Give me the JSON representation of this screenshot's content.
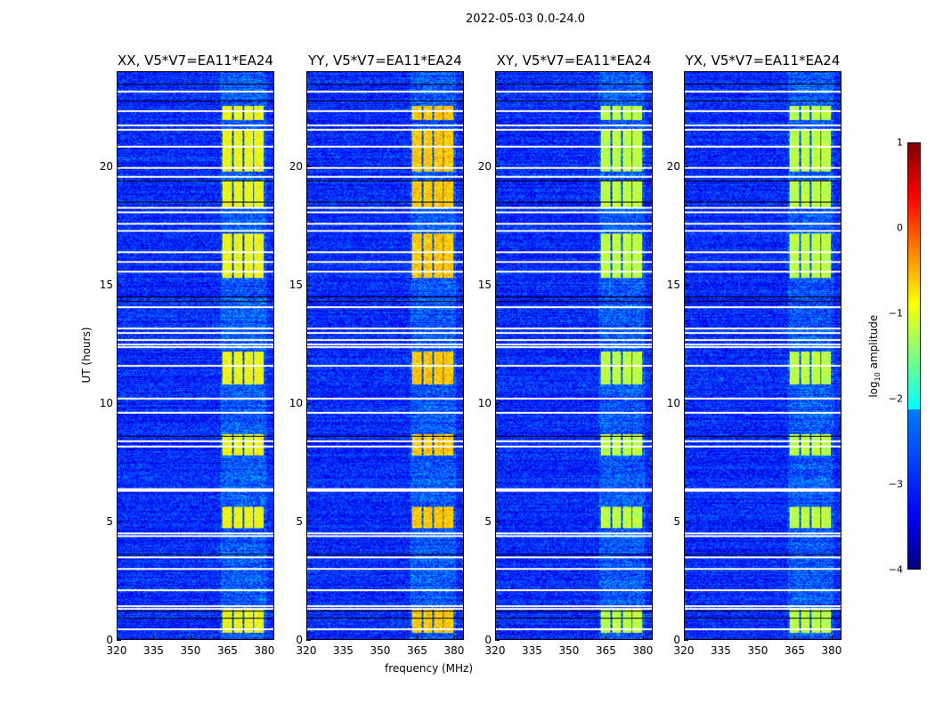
{
  "chart_data": {
    "type": "heatmap",
    "title": "2022-05-03 0.0-24.0",
    "xlabel": "frequency (MHz)",
    "ylabel": "UT (hours)",
    "xlim": [
      320,
      384
    ],
    "ylim": [
      0,
      24
    ],
    "xticks": [
      320,
      335,
      350,
      365,
      380
    ],
    "yticks": [
      0,
      5,
      10,
      15,
      20
    ],
    "colorbar": {
      "label": "log10 amplitude",
      "label_main": "log",
      "label_sub": "10",
      "label_rest": " amplitude",
      "range": [
        -4,
        1
      ],
      "ticks": [
        -4,
        -3,
        -2,
        -1,
        0,
        1
      ],
      "colormap": "jet"
    },
    "background_level": -3.2,
    "panels": [
      {
        "title": "XX, V5*V7=EA11*EA24",
        "peak_level": -0.9
      },
      {
        "title": "YY, V5*V7=EA11*EA24",
        "peak_level": -0.6
      },
      {
        "title": "XY, V5*V7=EA11*EA24",
        "peak_level": -1.2
      },
      {
        "title": "YX, V5*V7=EA11*EA24",
        "peak_level": -1.2
      }
    ],
    "signal_channels_mhz": [
      [
        363,
        367
      ],
      [
        367.5,
        371
      ],
      [
        372,
        375.5
      ],
      [
        376,
        380
      ]
    ],
    "signal_time_ranges_hours": [
      [
        0.3,
        1.3
      ],
      [
        4.7,
        5.6
      ],
      [
        7.8,
        8.7
      ],
      [
        10.8,
        12.2
      ],
      [
        15.3,
        17.2
      ],
      [
        18.3,
        19.4
      ],
      [
        19.8,
        21.6
      ],
      [
        22.0,
        22.6
      ]
    ],
    "flagged_hours": [
      0.45,
      1.3,
      1.42,
      2.1,
      3.0,
      3.5,
      4.4,
      4.5,
      6.3,
      6.4,
      8.2,
      8.4,
      9.6,
      10.2,
      11.6,
      12.4,
      12.5,
      12.7,
      13.0,
      13.2,
      14.1,
      15.6,
      16.0,
      16.4,
      17.3,
      17.6,
      18.1,
      18.3,
      19.6,
      20.0,
      20.9,
      21.6,
      21.8,
      22.4,
      23.2
    ],
    "zero_hours": [
      0.9,
      1.2,
      3.6,
      8.6,
      14.3,
      14.5,
      18.5,
      19.4,
      22.8,
      23.5
    ]
  }
}
